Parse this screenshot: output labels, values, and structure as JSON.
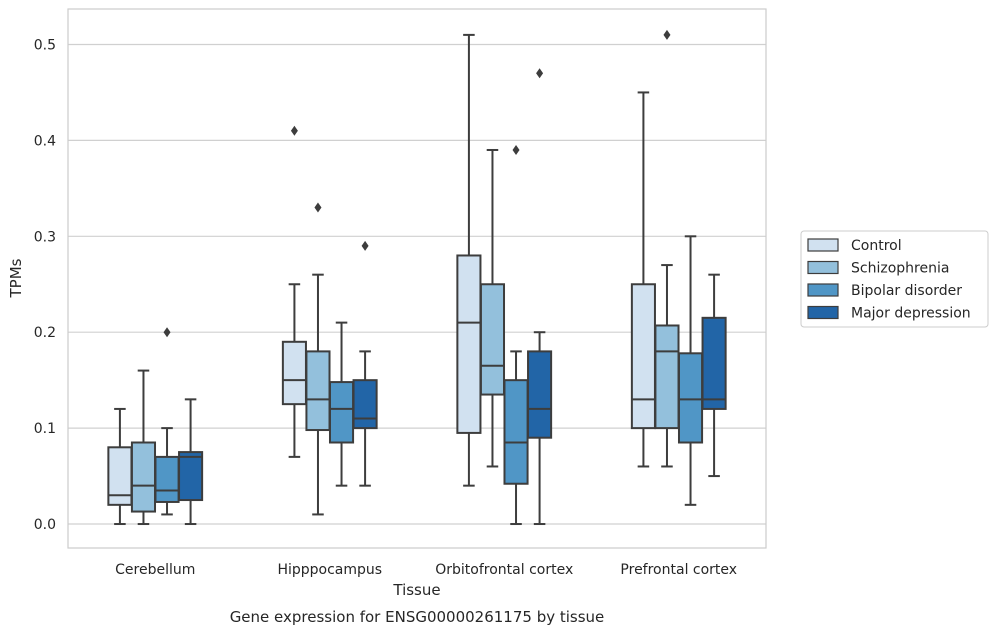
{
  "chart_data": {
    "type": "box",
    "title": "",
    "caption": "Gene expression for ENSG00000261175 by tissue",
    "xlabel": "Tissue",
    "ylabel": "TPMs",
    "ylim": [
      -0.025,
      0.537
    ],
    "yticks": [
      "0.0",
      "0.1",
      "0.2",
      "0.3",
      "0.4",
      "0.5"
    ],
    "grid": true,
    "legend_position": "right",
    "categories": [
      "Cerebellum",
      "Hipppocampus",
      "Orbitofrontal cortex",
      "Prefrontal cortex"
    ],
    "series": [
      {
        "name": "Control",
        "color": "#d1e1f0",
        "boxes": [
          {
            "whisker_low": 0.0,
            "q1": 0.02,
            "median": 0.03,
            "q3": 0.08,
            "whisker_high": 0.12,
            "outliers": []
          },
          {
            "whisker_low": 0.07,
            "q1": 0.125,
            "median": 0.15,
            "q3": 0.19,
            "whisker_high": 0.25,
            "outliers": [
              0.41
            ]
          },
          {
            "whisker_low": 0.04,
            "q1": 0.095,
            "median": 0.21,
            "q3": 0.28,
            "whisker_high": 0.51,
            "outliers": []
          },
          {
            "whisker_low": 0.06,
            "q1": 0.1,
            "median": 0.13,
            "q3": 0.25,
            "whisker_high": 0.45,
            "outliers": []
          }
        ]
      },
      {
        "name": "Schizophrenia",
        "color": "#93c0dc",
        "boxes": [
          {
            "whisker_low": 0.0,
            "q1": 0.013,
            "median": 0.04,
            "q3": 0.085,
            "whisker_high": 0.16,
            "outliers": []
          },
          {
            "whisker_low": 0.01,
            "q1": 0.098,
            "median": 0.13,
            "q3": 0.18,
            "whisker_high": 0.26,
            "outliers": [
              0.33
            ]
          },
          {
            "whisker_low": 0.06,
            "q1": 0.135,
            "median": 0.165,
            "q3": 0.25,
            "whisker_high": 0.39,
            "outliers": []
          },
          {
            "whisker_low": 0.06,
            "q1": 0.1,
            "median": 0.18,
            "q3": 0.207,
            "whisker_high": 0.27,
            "outliers": [
              0.51
            ]
          }
        ]
      },
      {
        "name": "Bipolar disorder",
        "color": "#5096c6",
        "boxes": [
          {
            "whisker_low": 0.01,
            "q1": 0.023,
            "median": 0.035,
            "q3": 0.07,
            "whisker_high": 0.1,
            "outliers": [
              0.2
            ]
          },
          {
            "whisker_low": 0.04,
            "q1": 0.085,
            "median": 0.12,
            "q3": 0.148,
            "whisker_high": 0.21,
            "outliers": []
          },
          {
            "whisker_low": 0.0,
            "q1": 0.042,
            "median": 0.085,
            "q3": 0.15,
            "whisker_high": 0.18,
            "outliers": [
              0.39
            ]
          },
          {
            "whisker_low": 0.02,
            "q1": 0.085,
            "median": 0.13,
            "q3": 0.178,
            "whisker_high": 0.3,
            "outliers": []
          }
        ]
      },
      {
        "name": "Major depression",
        "color": "#2265a7",
        "boxes": [
          {
            "whisker_low": 0.0,
            "q1": 0.025,
            "median": 0.07,
            "q3": 0.075,
            "whisker_high": 0.13,
            "outliers": []
          },
          {
            "whisker_low": 0.04,
            "q1": 0.1,
            "median": 0.11,
            "q3": 0.15,
            "whisker_high": 0.18,
            "outliers": [
              0.29
            ]
          },
          {
            "whisker_low": 0.0,
            "q1": 0.09,
            "median": 0.12,
            "q3": 0.18,
            "whisker_high": 0.2,
            "outliers": [
              0.47
            ]
          },
          {
            "whisker_low": 0.05,
            "q1": 0.12,
            "median": 0.13,
            "q3": 0.215,
            "whisker_high": 0.26,
            "outliers": []
          }
        ]
      }
    ]
  }
}
